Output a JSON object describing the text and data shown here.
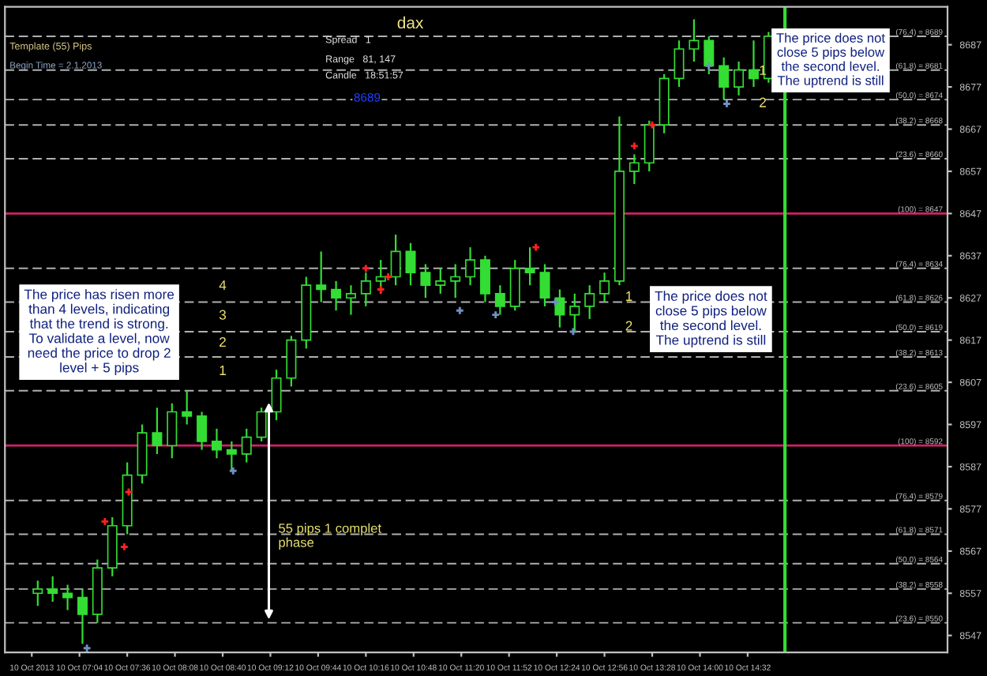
{
  "chart_data": {
    "type": "candlestick",
    "title": "dax",
    "x": [
      "2013-10-10T06:36",
      "2013-10-10T06:46",
      "2013-10-10T06:56",
      "2013-10-10T07:06",
      "2013-10-10T07:16",
      "2013-10-10T07:26",
      "2013-10-10T07:36",
      "2013-10-10T07:46",
      "2013-10-10T07:56",
      "2013-10-10T08:06",
      "2013-10-10T08:16",
      "2013-10-10T08:26",
      "2013-10-10T08:36",
      "2013-10-10T08:46",
      "2013-10-10T08:56",
      "2013-10-10T09:06",
      "2013-10-10T09:16",
      "2013-10-10T09:26",
      "2013-10-10T09:36",
      "2013-10-10T09:46",
      "2013-10-10T09:56",
      "2013-10-10T10:06",
      "2013-10-10T10:16",
      "2013-10-10T10:26",
      "2013-10-10T10:36",
      "2013-10-10T10:46",
      "2013-10-10T10:56",
      "2013-10-10T11:06",
      "2013-10-10T11:16",
      "2013-10-10T11:26",
      "2013-10-10T11:36",
      "2013-10-10T11:46",
      "2013-10-10T11:56",
      "2013-10-10T12:06",
      "2013-10-10T12:16",
      "2013-10-10T12:26",
      "2013-10-10T12:36",
      "2013-10-10T12:46",
      "2013-10-10T12:56",
      "2013-10-10T13:06",
      "2013-10-10T13:16",
      "2013-10-10T13:26",
      "2013-10-10T13:36",
      "2013-10-10T13:46",
      "2013-10-10T13:56",
      "2013-10-10T14:06",
      "2013-10-10T14:16",
      "2013-10-10T14:26",
      "2013-10-10T14:36",
      "2013-10-10T14:46"
    ],
    "ohlc": [
      [
        8557,
        8560,
        8554,
        8558
      ],
      [
        8558,
        8561,
        8555,
        8557
      ],
      [
        8557,
        8559,
        8553,
        8556
      ],
      [
        8556,
        8558,
        8545,
        8552
      ],
      [
        8552,
        8565,
        8550,
        8563
      ],
      [
        8563,
        8575,
        8561,
        8573
      ],
      [
        8573,
        8588,
        8571,
        8585
      ],
      [
        8585,
        8597,
        8583,
        8595
      ],
      [
        8595,
        8601,
        8590,
        8592
      ],
      [
        8592,
        8602,
        8589,
        8600
      ],
      [
        8600,
        8605,
        8597,
        8599
      ],
      [
        8599,
        8600,
        8591,
        8593
      ],
      [
        8593,
        8596,
        8589,
        8591
      ],
      [
        8591,
        8593,
        8586,
        8590
      ],
      [
        8590,
        8596,
        8588,
        8594
      ],
      [
        8594,
        8601,
        8593,
        8600
      ],
      [
        8600,
        8610,
        8598,
        8608
      ],
      [
        8608,
        8618,
        8606,
        8617
      ],
      [
        8617,
        8632,
        8615,
        8630
      ],
      [
        8630,
        8638,
        8626,
        8629
      ],
      [
        8629,
        8631,
        8624,
        8627
      ],
      [
        8627,
        8630,
        8623,
        8628
      ],
      [
        8628,
        8633,
        8625,
        8631
      ],
      [
        8631,
        8636,
        8628,
        8632
      ],
      [
        8632,
        8642,
        8630,
        8638
      ],
      [
        8638,
        8640,
        8630,
        8633
      ],
      [
        8633,
        8635,
        8627,
        8630
      ],
      [
        8630,
        8634,
        8628,
        8631
      ],
      [
        8631,
        8635,
        8627,
        8632
      ],
      [
        8632,
        8639,
        8630,
        8636
      ],
      [
        8636,
        8637,
        8626,
        8628
      ],
      [
        8628,
        8630,
        8623,
        8625
      ],
      [
        8625,
        8636,
        8624,
        8634
      ],
      [
        8634,
        8639,
        8630,
        8633
      ],
      [
        8633,
        8635,
        8625,
        8627
      ],
      [
        8627,
        8629,
        8620,
        8623
      ],
      [
        8623,
        8628,
        8619,
        8625
      ],
      [
        8625,
        8630,
        8622,
        8628
      ],
      [
        8628,
        8633,
        8626,
        8631
      ],
      [
        8631,
        8670,
        8630,
        8657
      ],
      [
        8657,
        8661,
        8654,
        8659
      ],
      [
        8659,
        8669,
        8657,
        8668
      ],
      [
        8668,
        8680,
        8666,
        8679
      ],
      [
        8679,
        8688,
        8677,
        8686
      ],
      [
        8686,
        8693,
        8683,
        8688
      ],
      [
        8688,
        8689,
        8680,
        8682
      ],
      [
        8682,
        8684,
        8674,
        8677
      ],
      [
        8677,
        8683,
        8675,
        8681
      ],
      [
        8681,
        8688,
        8677,
        8679
      ],
      [
        8679,
        8690,
        8678,
        8689
      ]
    ],
    "color": "#33dd33",
    "series": [
      {
        "type": "scatter",
        "color": "#ff2020",
        "x": [
          "2013-10-10T07:21",
          "2013-10-10T07:34",
          "2013-10-10T07:37",
          "2013-10-10T10:16",
          "2013-10-10T10:26",
          "2013-10-10T10:31",
          "2013-10-10T12:10",
          "2013-10-10T13:16",
          "2013-10-10T13:28"
        ],
        "values": [
          8574,
          8568,
          8581,
          8634,
          8629,
          8632,
          8639,
          8663,
          8668
        ]
      },
      {
        "type": "scatter",
        "color": "#7090c0",
        "x": [
          "2013-10-10T07:09",
          "2013-10-10T08:47",
          "2013-10-10T11:19",
          "2013-10-10T11:43",
          "2013-10-10T12:23",
          "2013-10-10T12:35",
          "2013-10-10T14:06",
          "2013-10-10T14:18"
        ],
        "values": [
          8544,
          8586,
          8624,
          8623,
          8626,
          8619,
          8682,
          8673
        ]
      }
    ],
    "marker": "cross",
    "xlim": [
      "2013-10-10T06:14",
      "2013-10-10T16:46"
    ],
    "xticks": [
      {
        "value": "2013-10-10T06:32",
        "label": "10 Oct 2013"
      },
      {
        "value": "2013-10-10T07:04",
        "label": "10 Oct 07:04"
      },
      {
        "value": "2013-10-10T07:36",
        "label": "10 Oct 07:36"
      },
      {
        "value": "2013-10-10T08:08",
        "label": "10 Oct 08:08"
      },
      {
        "value": "2013-10-10T08:40",
        "label": "10 Oct 08:40"
      },
      {
        "value": "2013-10-10T09:12",
        "label": "10 Oct 09:12"
      },
      {
        "value": "2013-10-10T09:44",
        "label": "10 Oct 09:44"
      },
      {
        "value": "2013-10-10T10:16",
        "label": "10 Oct 10:16"
      },
      {
        "value": "2013-10-10T10:48",
        "label": "10 Oct 10:48"
      },
      {
        "value": "2013-10-10T11:20",
        "label": "10 Oct 11:20"
      },
      {
        "value": "2013-10-10T11:52",
        "label": "10 Oct 11:52"
      },
      {
        "value": "2013-10-10T12:24",
        "label": "10 Oct 12:24"
      },
      {
        "value": "2013-10-10T12:56",
        "label": "10 Oct 12:56"
      },
      {
        "value": "2013-10-10T13:28",
        "label": "10 Oct 13:28"
      },
      {
        "value": "2013-10-10T14:00",
        "label": "10 Oct 14:00"
      },
      {
        "value": "2013-10-10T14:32",
        "label": "10 Oct 14:32"
      }
    ],
    "ylim": [
      8543,
      8696
    ],
    "yticks": [
      8547,
      8557,
      8567,
      8577,
      8587,
      8597,
      8607,
      8617,
      8627,
      8637,
      8647,
      8657,
      8667,
      8677,
      8687
    ],
    "grid": false,
    "ref_lines": [
      {
        "axis": "y",
        "value": 8689,
        "label": "(76.4) = 8689",
        "color": "#b0b0b0",
        "line_style": "dashed"
      },
      {
        "axis": "y",
        "value": 8681,
        "label": "(61.8) = 8681",
        "color": "#b0b0b0",
        "line_style": "dashed"
      },
      {
        "axis": "y",
        "value": 8674,
        "label": "(50.0) = 8674",
        "color": "#b0b0b0",
        "line_style": "dashed"
      },
      {
        "axis": "y",
        "value": 8668,
        "label": "(38.2) = 8668",
        "color": "#b0b0b0",
        "line_style": "dashed"
      },
      {
        "axis": "y",
        "value": 8660,
        "label": "(23.6) = 8660",
        "color": "#b0b0b0",
        "line_style": "dashed"
      },
      {
        "axis": "y",
        "value": 8647,
        "label": "(100) = 8647",
        "color": "#d0206a",
        "line_style": "solid"
      },
      {
        "axis": "y",
        "value": 8634,
        "label": "(76.4) = 8634",
        "color": "#b0b0b0",
        "line_style": "dashed"
      },
      {
        "axis": "y",
        "value": 8626,
        "label": "(61.8) = 8626",
        "color": "#b0b0b0",
        "line_style": "dashed"
      },
      {
        "axis": "y",
        "value": 8619,
        "label": "(50.0) = 8619",
        "color": "#b0b0b0",
        "line_style": "dashed"
      },
      {
        "axis": "y",
        "value": 8613,
        "label": "(38.2) = 8613",
        "color": "#b0b0b0",
        "line_style": "dashed"
      },
      {
        "axis": "y",
        "value": 8605,
        "label": "(23.6) = 8605",
        "color": "#b0b0b0",
        "line_style": "dashed"
      },
      {
        "axis": "y",
        "value": 8592,
        "label": "(100) = 8592",
        "color": "#d0206a",
        "line_style": "solid"
      },
      {
        "axis": "y",
        "value": 8579,
        "label": "(76.4) = 8579",
        "color": "#b0b0b0",
        "line_style": "dashed"
      },
      {
        "axis": "y",
        "value": 8571,
        "label": "(61.8) = 8571",
        "color": "#b0b0b0",
        "line_style": "dashed"
      },
      {
        "axis": "y",
        "value": 8564,
        "label": "(50.0) = 8564",
        "color": "#b0b0b0",
        "line_style": "dashed"
      },
      {
        "axis": "y",
        "value": 8558,
        "label": "(38.2) = 8558",
        "color": "#b0b0b0",
        "line_style": "dashed"
      },
      {
        "axis": "y",
        "value": 8550,
        "label": "(23.6) = 8550",
        "color": "#b0b0b0",
        "line_style": "dashed"
      },
      {
        "axis": "x",
        "value": "2013-10-10T14:57",
        "color": "#33dd33",
        "line_style": "solid"
      }
    ],
    "annotations": [
      "Template (55) Pips",
      "Begin Time = 2.1.2013",
      "Spread   1",
      "Range   81, 147",
      "Candle   18:51:57",
      "8689",
      "The price has risen more\nthan 4 levels, indicating\nthat the trend is strong.\nTo validate a level, now\nneed the price to drop 2\nlevel + 5 pips",
      "The price does not\nclose 5 pips below\nthe second level.\nThe uptrend is still",
      "The price does not\nclose 5 pips below\nthe second level.\nThe uptrend is still",
      "55 pips 1 complet\nphase",
      "4",
      "3",
      "2",
      "1",
      "1",
      "2",
      "1",
      "2"
    ]
  }
}
